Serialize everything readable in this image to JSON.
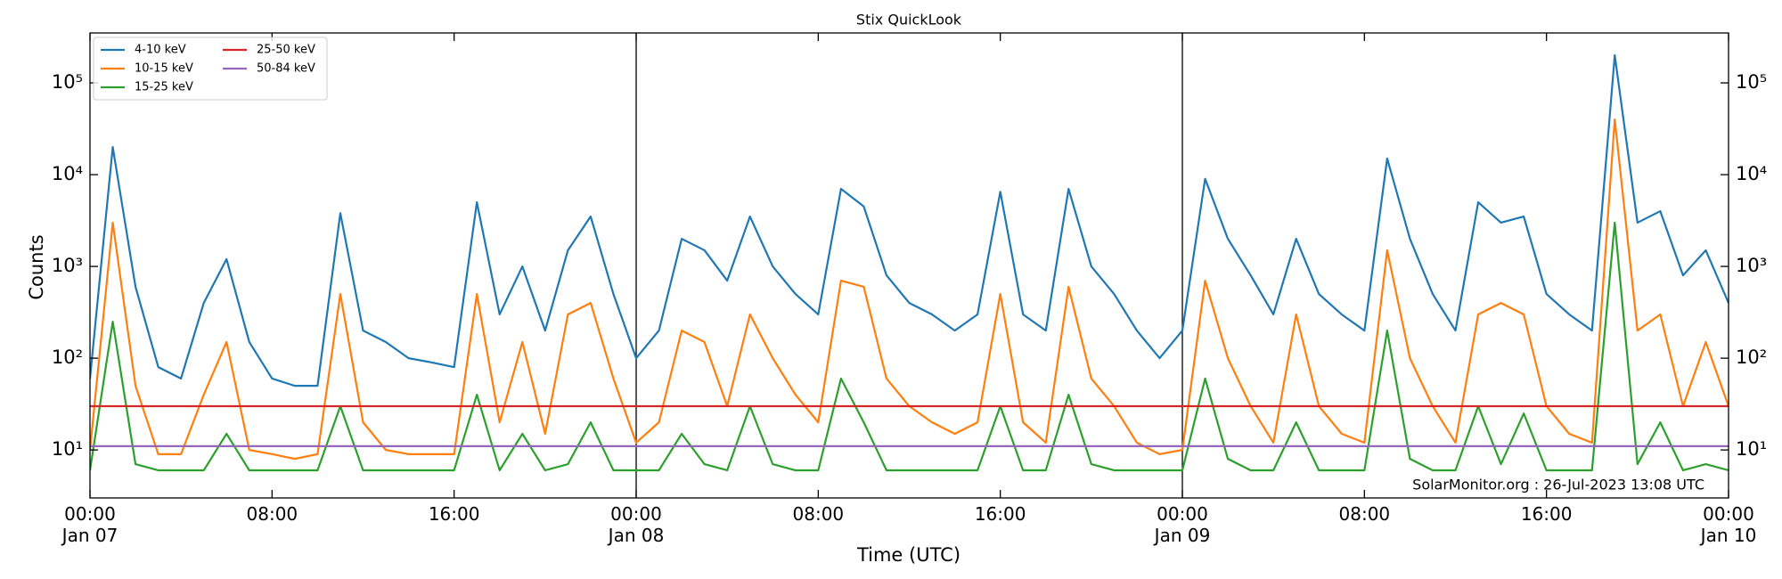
{
  "chart_data": {
    "type": "line",
    "title": "Stix QuickLook",
    "x_label": "Time (UTC)",
    "y_label": "Counts",
    "annotation": "SolarMonitor.org : 26-Jul-2023 13:08 UTC",
    "log_y": true,
    "legend": "upper left",
    "legend_columns": 2,
    "xlim": [
      "Jan 07 00:00",
      "Jan 10 00:00"
    ],
    "xticks": [
      {
        "value": "Jan 07 00:00",
        "label": "00:00\nJan 07"
      },
      {
        "value": "Jan 07 08:00",
        "label": "08:00"
      },
      {
        "value": "Jan 07 16:00",
        "label": "16:00"
      },
      {
        "value": "Jan 08 00:00",
        "label": "00:00\nJan 08"
      },
      {
        "value": "Jan 08 08:00",
        "label": "08:00"
      },
      {
        "value": "Jan 08 16:00",
        "label": "16:00"
      },
      {
        "value": "Jan 09 00:00",
        "label": "00:00\nJan 09"
      },
      {
        "value": "Jan 09 08:00",
        "label": "08:00"
      },
      {
        "value": "Jan 09 16:00",
        "label": "16:00"
      },
      {
        "value": "Jan 10 00:00",
        "label": "00:00\nJan 10"
      }
    ],
    "vlines": [
      "Jan 08 00:00",
      "Jan 09 00:00"
    ],
    "ylim": [
      3,
      350000
    ],
    "yticks": [
      {
        "value": 10,
        "label": "10¹"
      },
      {
        "value": 100,
        "label": "10²"
      },
      {
        "value": 1000,
        "label": "10³"
      },
      {
        "value": 10000,
        "label": "10⁴"
      },
      {
        "value": 100000,
        "label": "10⁵"
      }
    ],
    "x": [
      "Jan 07 00:00",
      "Jan 07 01:00",
      "Jan 07 02:00",
      "Jan 07 03:00",
      "Jan 07 04:00",
      "Jan 07 05:00",
      "Jan 07 06:00",
      "Jan 07 07:00",
      "Jan 07 08:00",
      "Jan 07 09:00",
      "Jan 07 10:00",
      "Jan 07 11:00",
      "Jan 07 12:00",
      "Jan 07 13:00",
      "Jan 07 14:00",
      "Jan 07 15:00",
      "Jan 07 16:00",
      "Jan 07 17:00",
      "Jan 07 18:00",
      "Jan 07 19:00",
      "Jan 07 20:00",
      "Jan 07 21:00",
      "Jan 07 22:00",
      "Jan 07 23:00",
      "Jan 08 00:00",
      "Jan 08 01:00",
      "Jan 08 02:00",
      "Jan 08 03:00",
      "Jan 08 04:00",
      "Jan 08 05:00",
      "Jan 08 06:00",
      "Jan 08 07:00",
      "Jan 08 08:00",
      "Jan 08 09:00",
      "Jan 08 10:00",
      "Jan 08 11:00",
      "Jan 08 12:00",
      "Jan 08 13:00",
      "Jan 08 14:00",
      "Jan 08 15:00",
      "Jan 08 16:00",
      "Jan 08 17:00",
      "Jan 08 18:00",
      "Jan 08 19:00",
      "Jan 08 20:00",
      "Jan 08 21:00",
      "Jan 08 22:00",
      "Jan 08 23:00",
      "Jan 09 00:00",
      "Jan 09 01:00",
      "Jan 09 02:00",
      "Jan 09 03:00",
      "Jan 09 04:00",
      "Jan 09 05:00",
      "Jan 09 06:00",
      "Jan 09 07:00",
      "Jan 09 08:00",
      "Jan 09 09:00",
      "Jan 09 10:00",
      "Jan 09 11:00",
      "Jan 09 12:00",
      "Jan 09 13:00",
      "Jan 09 14:00",
      "Jan 09 15:00",
      "Jan 09 16:00",
      "Jan 09 17:00",
      "Jan 09 18:00",
      "Jan 09 19:00",
      "Jan 09 20:00",
      "Jan 09 21:00",
      "Jan 09 22:00",
      "Jan 09 23:00",
      "Jan 10 00:00"
    ],
    "series": [
      {
        "name": "4-10 keV",
        "color": "#1f77b4",
        "values": [
          60,
          20000,
          600,
          80,
          60,
          400,
          1200,
          150,
          60,
          50,
          50,
          3800,
          200,
          150,
          100,
          90,
          80,
          5000,
          300,
          1000,
          200,
          1500,
          3500,
          500,
          100,
          200,
          2000,
          1500,
          700,
          3500,
          1000,
          500,
          300,
          7000,
          4500,
          800,
          400,
          300,
          200,
          300,
          6500,
          300,
          200,
          7000,
          1000,
          500,
          200,
          100,
          200,
          9000,
          2000,
          800,
          300,
          2000,
          500,
          300,
          200,
          15000,
          2000,
          500,
          200,
          5000,
          3000,
          3500,
          500,
          300,
          200,
          200000,
          3000,
          4000,
          800,
          1500,
          400
        ]
      },
      {
        "name": "10-15 keV",
        "color": "#ff7f0e",
        "values": [
          10,
          3000,
          50,
          9,
          9,
          40,
          150,
          10,
          9,
          8,
          9,
          500,
          20,
          10,
          9,
          9,
          9,
          500,
          20,
          150,
          15,
          300,
          400,
          60,
          12,
          20,
          200,
          150,
          30,
          300,
          100,
          40,
          20,
          700,
          600,
          60,
          30,
          20,
          15,
          20,
          500,
          20,
          12,
          600,
          60,
          30,
          12,
          9,
          10,
          700,
          100,
          30,
          12,
          300,
          30,
          15,
          12,
          1500,
          100,
          30,
          12,
          300,
          400,
          300,
          30,
          15,
          12,
          40000,
          200,
          300,
          30,
          150,
          30
        ]
      },
      {
        "name": "15-25 keV",
        "color": "#2ca02c",
        "values": [
          6,
          250,
          7,
          6,
          6,
          6,
          15,
          6,
          6,
          6,
          6,
          30,
          6,
          6,
          6,
          6,
          6,
          40,
          6,
          15,
          6,
          7,
          20,
          6,
          6,
          6,
          15,
          7,
          6,
          30,
          7,
          6,
          6,
          60,
          20,
          6,
          6,
          6,
          6,
          6,
          30,
          6,
          6,
          40,
          7,
          6,
          6,
          6,
          6,
          60,
          8,
          6,
          6,
          20,
          6,
          6,
          6,
          200,
          8,
          6,
          6,
          30,
          7,
          25,
          6,
          6,
          6,
          3000,
          7,
          20,
          6,
          7,
          6
        ]
      },
      {
        "name": "25-50 keV",
        "color": "#d62728",
        "values": [
          30,
          30,
          30,
          30,
          30,
          30,
          30,
          30,
          30,
          30,
          30,
          30,
          30,
          30,
          30,
          30,
          30,
          30,
          30,
          30,
          30,
          30,
          30,
          30,
          30,
          30,
          30,
          30,
          30,
          30,
          30,
          30,
          30,
          30,
          30,
          30,
          30,
          30,
          30,
          30,
          30,
          30,
          30,
          30,
          30,
          30,
          30,
          30,
          30,
          30,
          30,
          30,
          30,
          30,
          30,
          30,
          30,
          30,
          30,
          30,
          30,
          30,
          30,
          30,
          30,
          30,
          30,
          30,
          30,
          30,
          30,
          30,
          30
        ]
      },
      {
        "name": "50-84 keV",
        "color": "#9467bd",
        "values": [
          11,
          11,
          11,
          11,
          11,
          11,
          11,
          11,
          11,
          11,
          11,
          11,
          11,
          11,
          11,
          11,
          11,
          11,
          11,
          11,
          11,
          11,
          11,
          11,
          11,
          11,
          11,
          11,
          11,
          11,
          11,
          11,
          11,
          11,
          11,
          11,
          11,
          11,
          11,
          11,
          11,
          11,
          11,
          11,
          11,
          11,
          11,
          11,
          11,
          11,
          11,
          11,
          11,
          11,
          11,
          11,
          11,
          11,
          11,
          11,
          11,
          11,
          11,
          11,
          11,
          11,
          11,
          11,
          11,
          11,
          11,
          11,
          11
        ]
      }
    ]
  }
}
